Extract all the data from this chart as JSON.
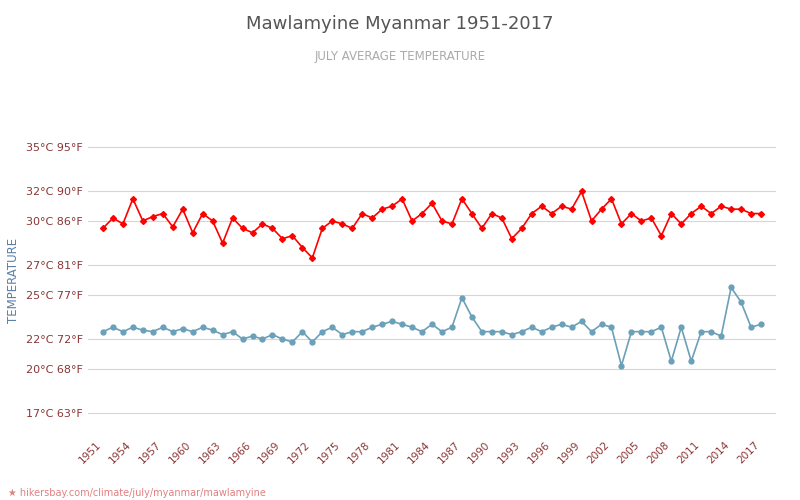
{
  "title": "Mawlamyine Myanmar 1951-2017",
  "subtitle": "JULY AVERAGE TEMPERATURE",
  "ylabel": "TEMPERATURE",
  "watermark": "hikersbay.com/climate/july/myanmar/mawlamyine",
  "background_color": "#ffffff",
  "grid_color": "#cdd8e3",
  "title_color": "#555555",
  "subtitle_color": "#aaaaaa",
  "ylabel_color": "#5a7fa8",
  "tick_color": "#8b3535",
  "years": [
    1951,
    1952,
    1953,
    1954,
    1955,
    1956,
    1957,
    1958,
    1959,
    1960,
    1961,
    1962,
    1963,
    1964,
    1965,
    1966,
    1967,
    1968,
    1969,
    1970,
    1971,
    1972,
    1973,
    1974,
    1975,
    1976,
    1977,
    1978,
    1979,
    1980,
    1981,
    1982,
    1983,
    1984,
    1985,
    1986,
    1987,
    1988,
    1989,
    1990,
    1991,
    1992,
    1993,
    1994,
    1995,
    1996,
    1997,
    1998,
    1999,
    2000,
    2001,
    2002,
    2003,
    2004,
    2005,
    2006,
    2007,
    2008,
    2009,
    2010,
    2011,
    2012,
    2013,
    2014,
    2015,
    2016,
    2017
  ],
  "day_temps": [
    29.5,
    30.2,
    29.8,
    31.5,
    30.0,
    30.3,
    30.5,
    29.6,
    30.8,
    29.2,
    30.5,
    30.0,
    28.5,
    30.2,
    29.5,
    29.2,
    29.8,
    29.5,
    28.8,
    29.0,
    28.2,
    27.5,
    29.5,
    30.0,
    29.8,
    29.5,
    30.5,
    30.2,
    30.8,
    31.0,
    31.5,
    30.0,
    30.5,
    31.2,
    30.0,
    29.8,
    31.5,
    30.5,
    29.5,
    30.5,
    30.2,
    28.8,
    29.5,
    30.5,
    31.0,
    30.5,
    31.0,
    30.8,
    32.0,
    30.0,
    30.8,
    31.5,
    29.8,
    30.5,
    30.0,
    30.2,
    29.0,
    30.5,
    29.8,
    30.5,
    31.0,
    30.5,
    31.0,
    30.8,
    30.8,
    30.5,
    30.5
  ],
  "night_temps": [
    22.5,
    22.8,
    22.5,
    22.8,
    22.6,
    22.5,
    22.8,
    22.5,
    22.7,
    22.5,
    22.8,
    22.6,
    22.3,
    22.5,
    22.0,
    22.2,
    22.0,
    22.3,
    22.0,
    21.8,
    22.5,
    21.8,
    22.5,
    22.8,
    22.3,
    22.5,
    22.5,
    22.8,
    23.0,
    23.2,
    23.0,
    22.8,
    22.5,
    23.0,
    22.5,
    22.8,
    24.8,
    23.5,
    22.5,
    22.5,
    22.5,
    22.3,
    22.5,
    22.8,
    22.5,
    22.8,
    23.0,
    22.8,
    23.2,
    22.5,
    23.0,
    22.8,
    20.2,
    22.5,
    22.5,
    22.5,
    22.8,
    20.5,
    22.8,
    20.5,
    22.5,
    22.5,
    22.2,
    25.5,
    24.5,
    22.8,
    23.0
  ],
  "day_color": "#ff0000",
  "night_color": "#6aa0b8",
  "marker_size": 3.5,
  "line_width": 1.2,
  "yticks_c": [
    17,
    20,
    22,
    25,
    27,
    30,
    32,
    35
  ],
  "yticks_f": [
    63,
    68,
    72,
    77,
    81,
    86,
    90,
    95
  ],
  "ylim": [
    15.5,
    36.5
  ],
  "xtick_years": [
    1951,
    1954,
    1957,
    1960,
    1963,
    1966,
    1969,
    1972,
    1975,
    1978,
    1981,
    1984,
    1987,
    1990,
    1993,
    1996,
    1999,
    2002,
    2005,
    2008,
    2011,
    2014,
    2017
  ],
  "xlim": [
    1949.5,
    2018.5
  ]
}
